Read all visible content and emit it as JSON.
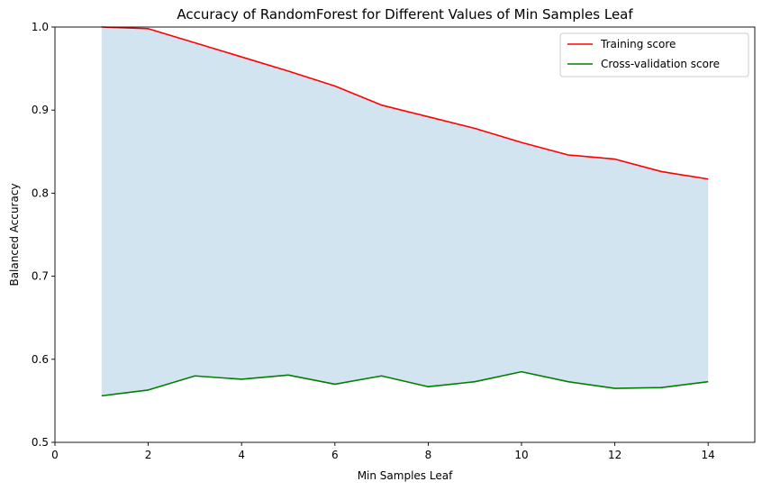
{
  "chart_data": {
    "type": "line",
    "title": "Accuracy of RandomForest for Different Values of Min Samples Leaf",
    "xlabel": "Min Samples Leaf",
    "ylabel": "Balanced Accuracy",
    "xlim": [
      0,
      15
    ],
    "ylim": [
      0.5,
      1.0
    ],
    "xticks": [
      0,
      2,
      4,
      6,
      8,
      10,
      12,
      14
    ],
    "yticks": [
      0.5,
      0.6,
      0.7,
      0.8,
      0.9,
      1.0
    ],
    "xtick_labels": [
      "0",
      "2",
      "4",
      "6",
      "8",
      "10",
      "12",
      "14"
    ],
    "ytick_labels": [
      "0.5",
      "0.6",
      "0.7",
      "0.8",
      "0.9",
      "1.0"
    ],
    "x": [
      1,
      2,
      3,
      4,
      5,
      6,
      7,
      8,
      9,
      10,
      11,
      12,
      13,
      14
    ],
    "series": [
      {
        "name": "Training score",
        "color": "#ff0000",
        "values": [
          1.0,
          0.998,
          0.981,
          0.964,
          0.947,
          0.929,
          0.906,
          0.892,
          0.878,
          0.861,
          0.846,
          0.841,
          0.826,
          0.817
        ]
      },
      {
        "name": "Cross-validation score",
        "color": "#008000",
        "values": [
          0.556,
          0.563,
          0.58,
          0.576,
          0.581,
          0.57,
          0.58,
          0.567,
          0.573,
          0.585,
          0.573,
          0.565,
          0.566,
          0.573
        ]
      }
    ],
    "fill_between": {
      "upper": "Training score",
      "lower": "Cross-validation score",
      "color": "#1f77b4",
      "opacity": 0.2
    },
    "grid": false,
    "legend_position": "upper-right"
  }
}
